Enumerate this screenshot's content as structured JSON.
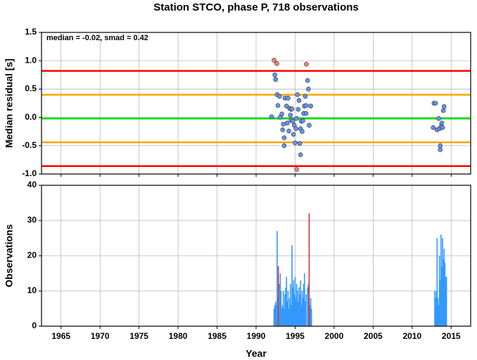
{
  "chart_data": [
    {
      "type": "scatter",
      "title": "Station STCO, phase P, 718 observations",
      "annotation": "median = -0.02, smad = 0.42",
      "ylabel": "Median residual [s]",
      "xlim": [
        1962.5,
        2017.5
      ],
      "xticks": [
        1965,
        1970,
        1975,
        1980,
        1985,
        1990,
        1995,
        2000,
        2005,
        2010,
        2015
      ],
      "ylim": [
        -1.0,
        1.5
      ],
      "yticks": [
        1.5,
        {
          "value": 1.0,
          "label": "1.0"
        },
        0.5,
        {
          "value": 0.0,
          "label": "0.0"
        },
        -0.5,
        {
          "value": -1.0,
          "label": "-1.0"
        }
      ],
      "grid": true,
      "reference_lines": [
        {
          "value": 0.82,
          "color": "#ff0000"
        },
        {
          "value": -0.86,
          "color": "#ff0000"
        },
        {
          "value": 0.4,
          "color": "#ffa500"
        },
        {
          "value": -0.44,
          "color": "#ffa500"
        },
        {
          "value": -0.02,
          "color": "#00e000"
        }
      ],
      "series": [
        {
          "color": "#6495ed",
          "x": [
            1992.0,
            1992.4,
            1992.5,
            1992.7,
            1992.8,
            1993.0,
            1993.1,
            1993.3,
            1993.4,
            1993.5,
            1993.6,
            1993.6,
            1993.7,
            1993.9,
            1994.0,
            1994.1,
            1994.2,
            1994.3,
            1994.4,
            1994.5,
            1994.5,
            1994.6,
            1994.7,
            1994.8,
            1994.9,
            1995.0,
            1995.1,
            1995.2,
            1995.3,
            1995.4,
            1995.5,
            1995.6,
            1995.7,
            1995.7,
            1995.8,
            1995.9,
            1996.0,
            1996.1,
            1996.2,
            1996.3,
            1996.4,
            1996.4,
            1996.6,
            1996.7,
            1996.8,
            1997.0,
            2012.7,
            2012.8,
            2013.0,
            2013.2,
            2013.4,
            2013.5,
            2013.6,
            2013.6,
            2013.7,
            2013.8,
            2013.9,
            2014.0,
            2014.1
          ],
          "values": [
            0.01,
            0.75,
            0.67,
            0.4,
            0.21,
            0.37,
            0.0,
            0.06,
            -0.22,
            -0.12,
            -0.36,
            -0.5,
            0.34,
            0.2,
            -0.1,
            0.34,
            -0.24,
            0.16,
            0.04,
            0.14,
            -0.05,
            0.15,
            -0.07,
            -0.3,
            -0.14,
            -0.45,
            -0.2,
            -0.02,
            0.4,
            0.14,
            0.3,
            -0.46,
            -0.2,
            -0.66,
            -0.07,
            -0.25,
            -0.06,
            0.07,
            0.2,
            0.37,
            0.21,
            0.07,
            0.65,
            0.5,
            -0.14,
            0.2,
            -0.18,
            0.25,
            0.25,
            -0.22,
            -0.02,
            -0.2,
            -0.5,
            -0.57,
            -0.16,
            -0.1,
            -0.18,
            0.12,
            0.19
          ]
        },
        {
          "color": "#fa8072",
          "x": [
            1992.3,
            1992.66,
            1996.44,
            1995.2
          ],
          "values": [
            1.01,
            0.95,
            0.94,
            -0.92
          ]
        }
      ]
    },
    {
      "type": "bar",
      "ylabel": "Observations",
      "xlabel": "Year",
      "xlim": [
        1962.5,
        2017.5
      ],
      "xticks": [
        1965,
        1970,
        1975,
        1980,
        1985,
        1990,
        1995,
        2000,
        2005,
        2010,
        2015
      ],
      "ylim": [
        0,
        40
      ],
      "yticks": [
        0,
        10,
        20,
        30,
        40
      ],
      "grid": true,
      "series": [
        {
          "color": "#3399ff",
          "x": [
            1992.3,
            1992.4,
            1992.5,
            1992.6,
            1992.7,
            1992.8,
            1992.9,
            1993.0,
            1993.1,
            1993.2,
            1993.3,
            1993.4,
            1993.5,
            1993.6,
            1993.7,
            1993.8,
            1993.9,
            1994.0,
            1994.1,
            1994.2,
            1994.3,
            1994.4,
            1994.5,
            1994.6,
            1994.7,
            1994.8,
            1994.9,
            1995.0,
            1995.1,
            1995.2,
            1995.3,
            1995.4,
            1995.5,
            1995.6,
            1995.7,
            1995.8,
            1995.9,
            1996.0,
            1996.1,
            1996.2,
            1996.3,
            1996.4,
            1996.6,
            1996.7,
            1996.9,
            1997.0,
            1997.1,
            2012.9,
            2013.0,
            2013.1,
            2013.2,
            2013.3,
            2013.4,
            2013.5,
            2013.6,
            2013.7,
            2013.8,
            2013.9,
            2014.0,
            2014.1,
            2014.2,
            2014.3,
            2014.4
          ],
          "values": [
            5,
            6,
            7,
            6,
            27,
            8,
            4,
            12,
            15,
            10,
            5,
            6,
            10,
            5,
            9,
            11,
            14,
            7,
            10,
            5,
            8,
            12,
            6,
            23,
            11,
            13,
            9,
            14,
            8,
            12,
            10,
            7,
            11,
            9,
            13,
            6,
            10,
            8,
            12,
            15,
            7,
            9,
            11,
            12,
            6,
            8,
            5,
            10,
            8,
            10,
            25,
            8,
            6,
            20,
            13,
            26,
            17,
            25,
            19,
            22,
            18,
            14,
            14
          ]
        },
        {
          "color": "#e03030",
          "x": [
            1992.85,
            1996.8
          ],
          "values": [
            17,
            32
          ]
        }
      ]
    }
  ]
}
